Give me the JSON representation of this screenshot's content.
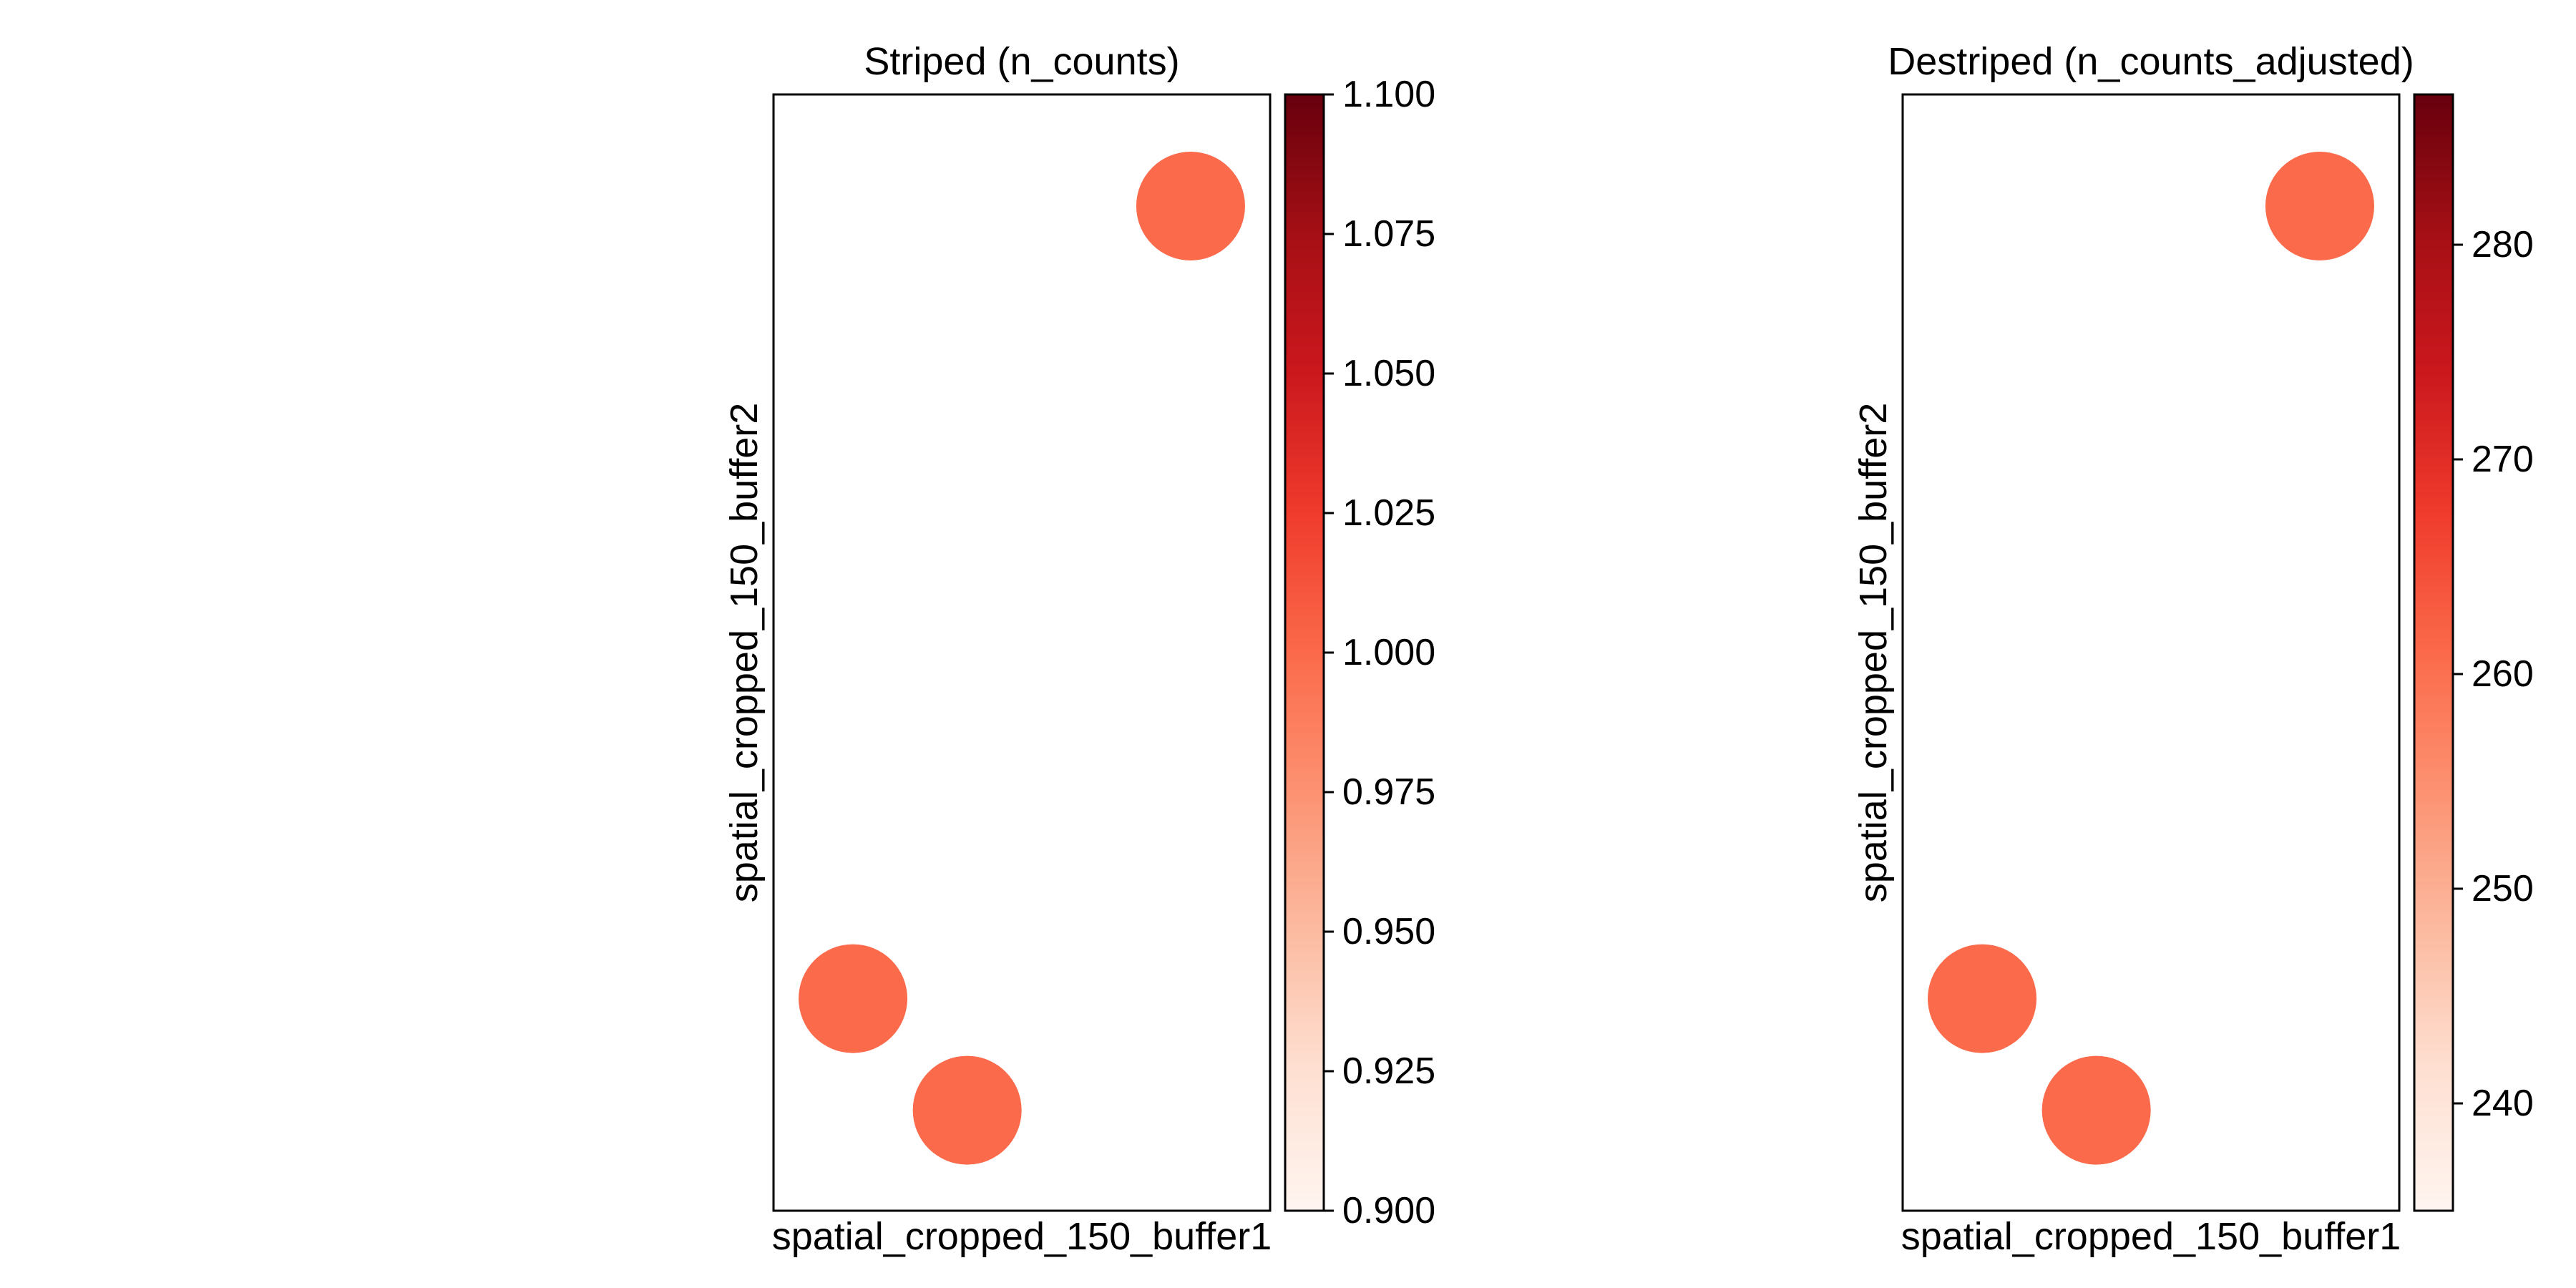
{
  "chart_data": [
    {
      "type": "scatter",
      "title": "Striped (n_counts)",
      "xlabel": "spatial_cropped_150_buffer1",
      "ylabel": "spatial_cropped_150_buffer2",
      "grid": false,
      "colormap": "Reds",
      "colorbar": {
        "range": [
          0.9,
          1.1
        ],
        "ticks": [
          0.9,
          0.925,
          0.95,
          0.975,
          1.0,
          1.025,
          1.05,
          1.075,
          1.1
        ],
        "tick_labels": [
          "0.900",
          "0.925",
          "0.950",
          "0.975",
          "1.000",
          "1.025",
          "1.050",
          "1.075",
          "1.100"
        ]
      },
      "points": [
        {
          "x": 0.84,
          "y": 0.9,
          "value": 1.0
        },
        {
          "x": 0.16,
          "y": 0.19,
          "value": 1.0
        },
        {
          "x": 0.39,
          "y": 0.09,
          "value": 1.0
        }
      ],
      "point_color": "#fb6a4a"
    },
    {
      "type": "scatter",
      "title": "Destriped (n_counts_adjusted)",
      "xlabel": "spatial_cropped_150_buffer1",
      "ylabel": "spatial_cropped_150_buffer2",
      "grid": false,
      "colormap": "Reds",
      "colorbar": {
        "range": [
          235,
          287
        ],
        "ticks": [
          240,
          250,
          260,
          270,
          280
        ],
        "tick_labels": [
          "240",
          "250",
          "260",
          "270",
          "280"
        ]
      },
      "points": [
        {
          "x": 0.84,
          "y": 0.9,
          "value": 261
        },
        {
          "x": 0.16,
          "y": 0.19,
          "value": 261
        },
        {
          "x": 0.39,
          "y": 0.09,
          "value": 261
        }
      ],
      "point_color": "#fb6a4a"
    }
  ]
}
